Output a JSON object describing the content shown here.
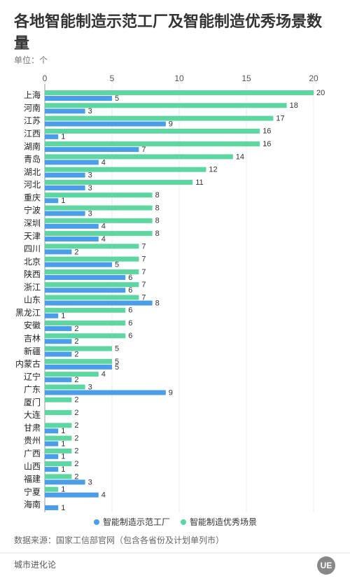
{
  "chart_data": {
    "type": "hbar",
    "title": [
      "各地智能制造示范工厂及智能制造优秀场景数量"
    ],
    "subtitle": "单位：个",
    "categories": [
      "上海",
      "河南",
      "江苏",
      "江西",
      "湖南",
      "青岛",
      "湖北",
      "河北",
      "重庆",
      "宁波",
      "深圳",
      "天津",
      "四川",
      "北京",
      "陕西",
      "浙江",
      "山东",
      "黑龙江",
      "安徽",
      "吉林",
      "新疆",
      "内蒙古",
      "辽宁",
      "广东",
      "厦门",
      "大连",
      "甘肃",
      "贵州",
      "广西",
      "山西",
      "福建",
      "宁夏",
      "海南"
    ],
    "series": [
      {
        "name": "智能制造示范工厂",
        "color": "#4a9de6",
        "values": [
          5,
          3,
          9,
          1,
          7,
          4,
          3,
          3,
          1,
          3,
          4,
          4,
          2,
          5,
          6,
          6,
          8,
          1,
          2,
          2,
          2,
          5,
          2,
          9,
          null,
          null,
          1,
          1,
          1,
          1,
          3,
          4,
          1
        ]
      },
      {
        "name": "智能制造优秀场景",
        "color": "#5dd6a2",
        "values": [
          20,
          18,
          17,
          16,
          16,
          14,
          12,
          11,
          8,
          8,
          8,
          8,
          7,
          7,
          7,
          7,
          7,
          6,
          6,
          6,
          5,
          5,
          4,
          3,
          2,
          2,
          2,
          2,
          2,
          2,
          2,
          1,
          null
        ]
      }
    ],
    "xlim": [
      0,
      20
    ],
    "xticks": [
      0,
      5,
      10,
      15,
      20
    ],
    "grid": true,
    "source": "数据来源：国家工信部官网（包含各省份及计划单列市）"
  },
  "footer": {
    "brand": "城市进化论",
    "logo": "UE"
  }
}
